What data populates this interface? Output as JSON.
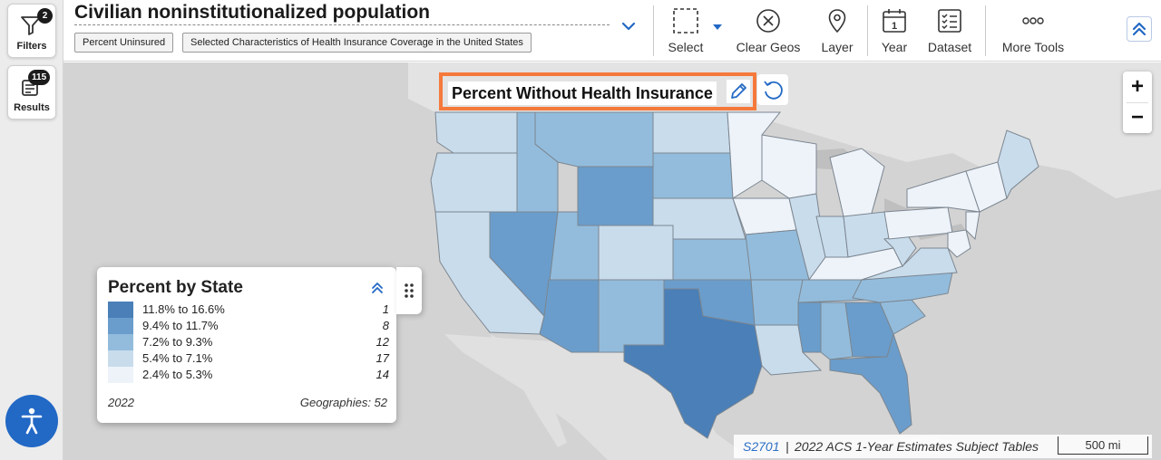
{
  "rail": {
    "filters": {
      "label": "Filters",
      "badge": "2"
    },
    "results": {
      "label": "Results",
      "badge": "115"
    }
  },
  "header": {
    "title": "Civilian noninstitutionalized population",
    "chips": [
      "Percent Uninsured",
      "Selected Characteristics of Health Insurance Coverage in the United States"
    ],
    "tools": {
      "select": "Select",
      "clear_geos": "Clear Geos",
      "layer": "Layer",
      "year": "Year",
      "year_icon_digit": "1",
      "dataset": "Dataset",
      "more_tools": "More Tools"
    }
  },
  "map": {
    "title": "Percent Without Health Insurance",
    "zoom_in": "+",
    "zoom_out": "−",
    "legend": {
      "title": "Percent by State",
      "rows": [
        {
          "range": "11.8% to 16.6%",
          "count": "1",
          "color": "#4a7fb8"
        },
        {
          "range": "9.4% to 11.7%",
          "count": "8",
          "color": "#6a9dcb"
        },
        {
          "range": "7.2% to 9.3%",
          "count": "12",
          "color": "#93bcdc"
        },
        {
          "range": "5.4% to 7.1%",
          "count": "17",
          "color": "#c9dcec"
        },
        {
          "range": "2.4% to 5.3%",
          "count": "14",
          "color": "#eef3fa"
        }
      ],
      "year": "2022",
      "geographies": "Geographies: 52"
    },
    "attribution": {
      "source": "S2701",
      "separator": "|",
      "description": "2022 ACS 1-Year Estimates Subject Tables",
      "scale": "500 mi"
    }
  },
  "colors": {
    "accent": "#2268c5",
    "highlight": "#f5793b"
  }
}
